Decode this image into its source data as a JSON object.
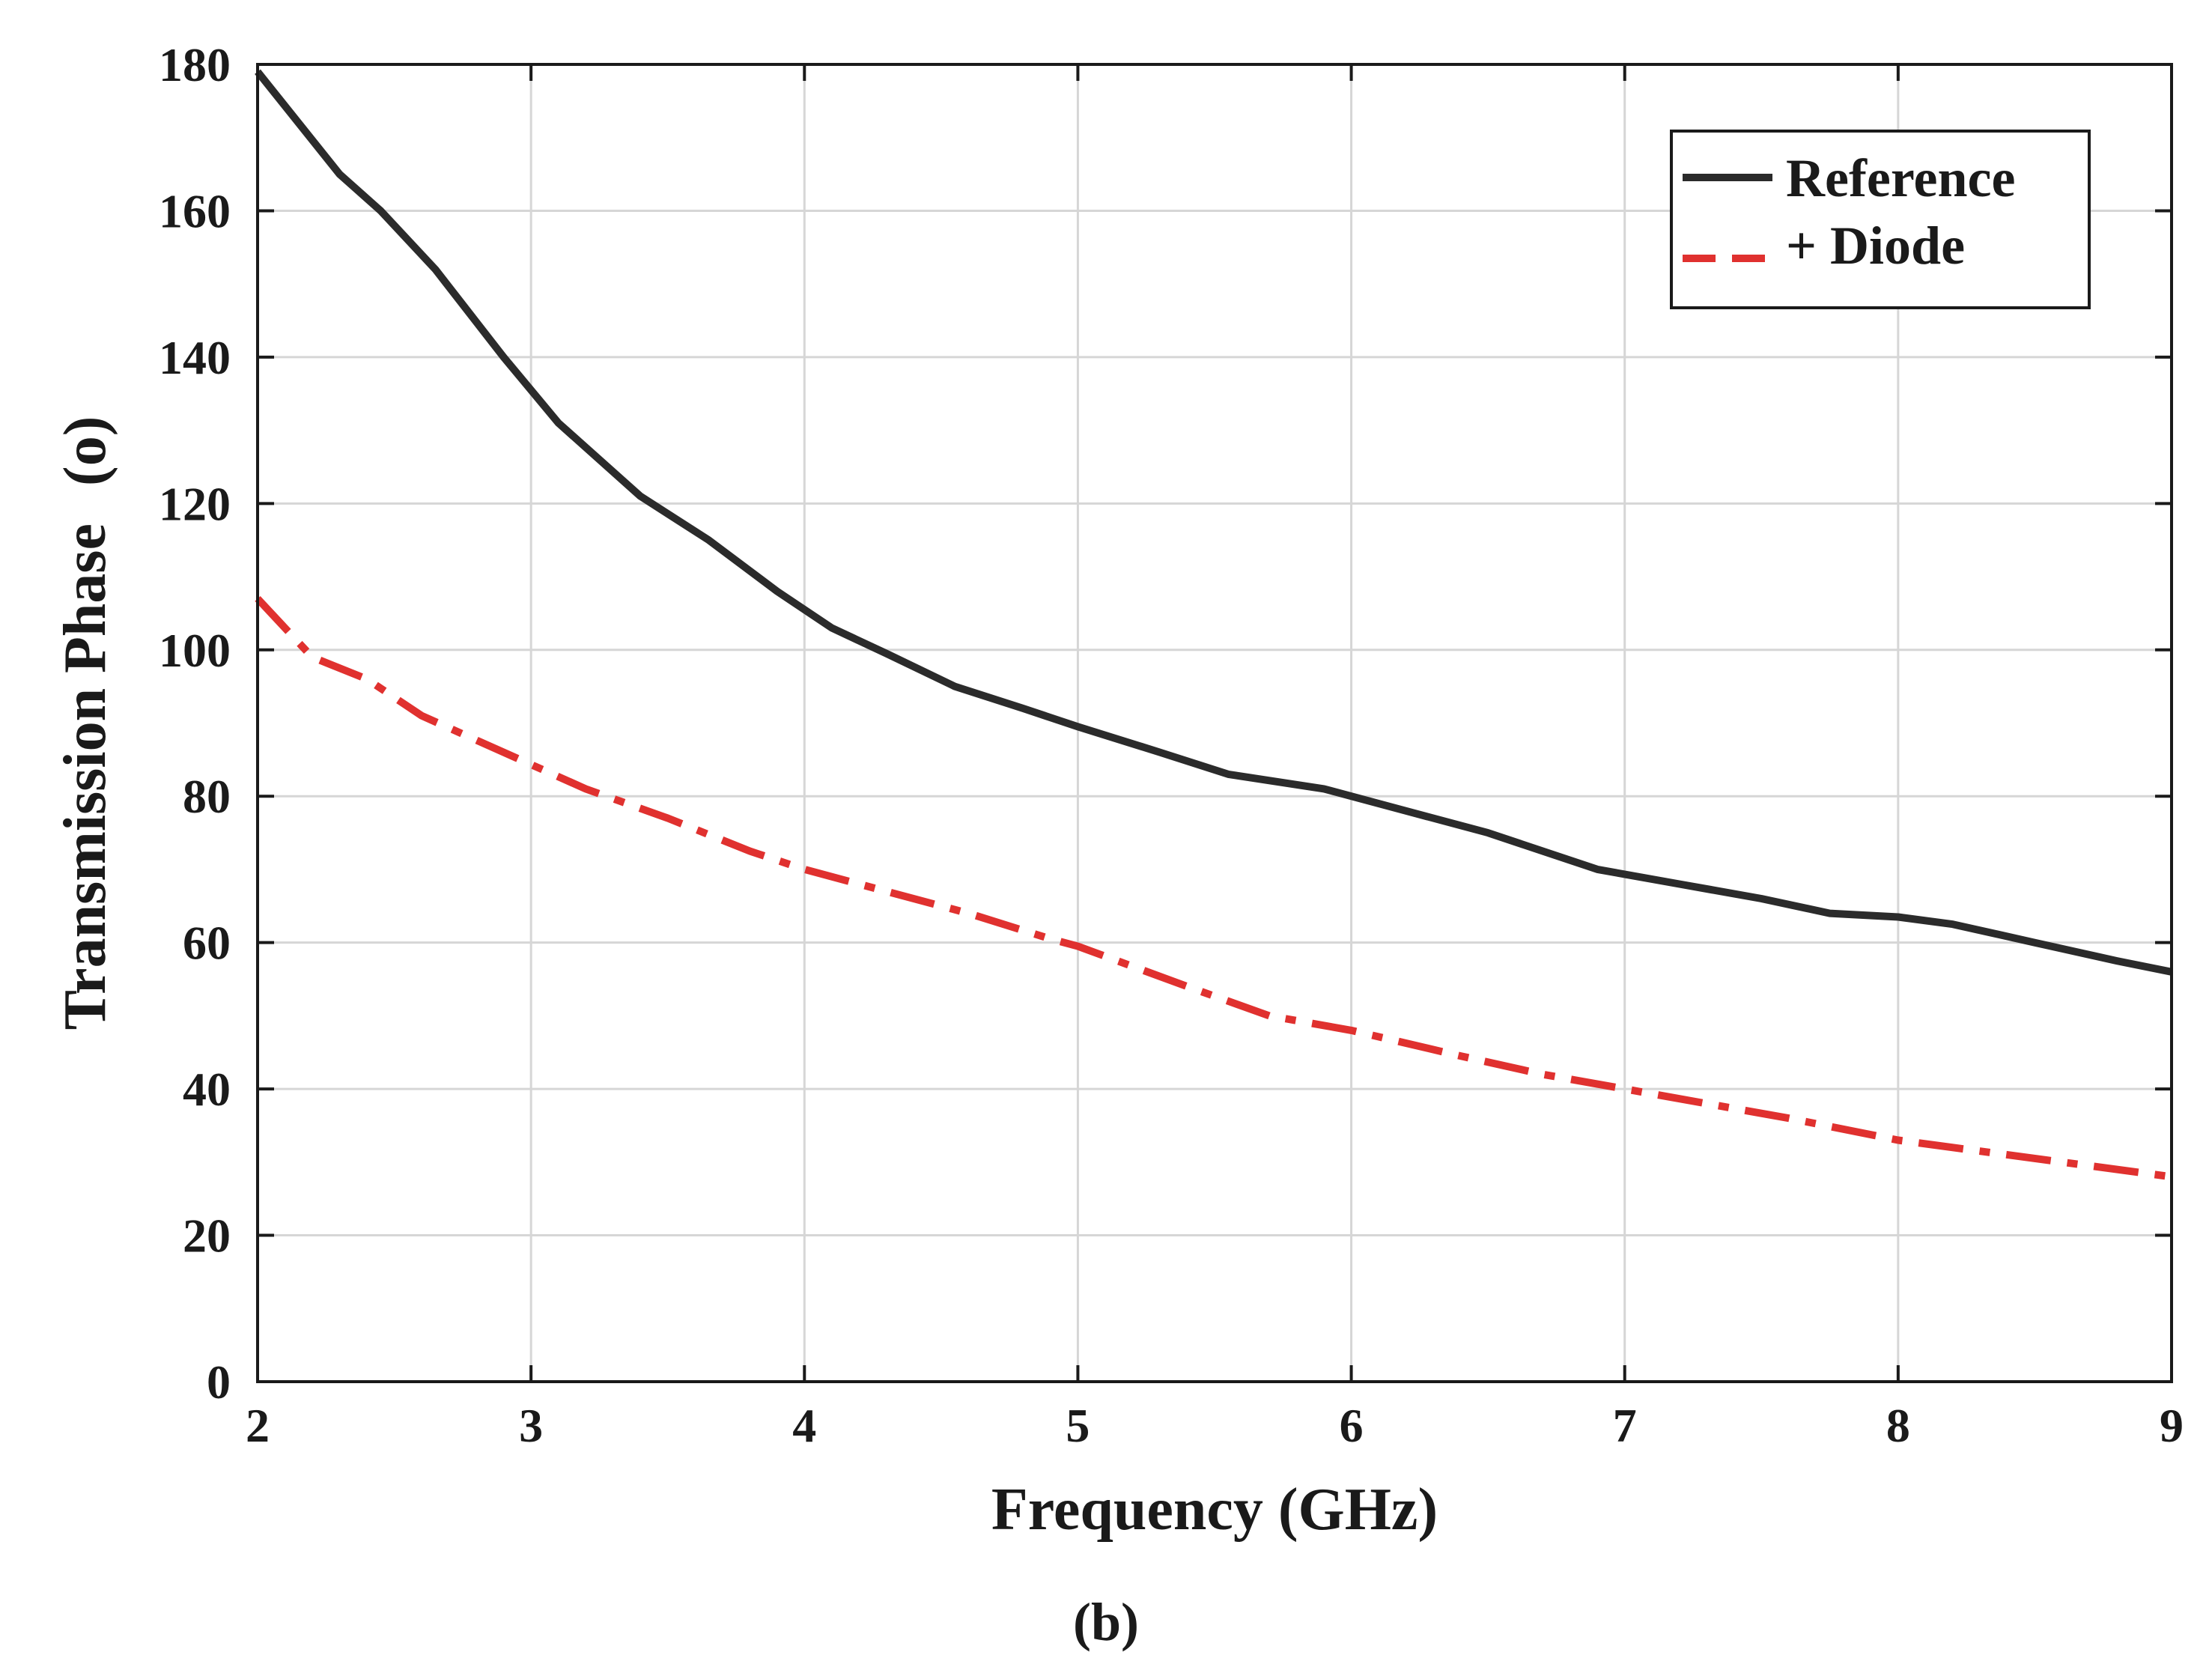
{
  "chart_data": {
    "type": "line",
    "title": "",
    "xlabel": "Frequency (GHz)",
    "ylabel": "Transmission Phase",
    "ylabel_unit": "(o)",
    "caption": "(b)",
    "xlim": [
      2,
      9
    ],
    "ylim": [
      0,
      180
    ],
    "xticks": [
      2,
      3,
      4,
      5,
      6,
      7,
      8,
      9
    ],
    "yticks": [
      0,
      20,
      40,
      60,
      80,
      100,
      120,
      140,
      160,
      180
    ],
    "grid": true,
    "legend_position": "top-right",
    "series": [
      {
        "name": "Reference",
        "color": "#2b2b2b",
        "style": "solid",
        "x": [
          2.0,
          2.15,
          2.3,
          2.45,
          2.65,
          2.9,
          3.1,
          3.4,
          3.65,
          3.9,
          4.1,
          4.3,
          4.55,
          4.8,
          5.0,
          5.3,
          5.55,
          5.9,
          6.2,
          6.5,
          6.9,
          7.2,
          7.5,
          7.75,
          8.0,
          8.2,
          8.5,
          8.8,
          9.0
        ],
        "values": [
          179,
          172,
          165,
          160,
          152,
          140,
          131,
          121,
          115,
          108,
          103,
          99.5,
          95,
          92,
          89.5,
          86,
          83,
          81,
          78,
          75,
          70,
          68,
          66,
          64,
          63.5,
          62.5,
          60,
          57.5,
          56
        ]
      },
      {
        "name": "+ Diode",
        "color": "#e0312f",
        "style": "dashdot",
        "x": [
          2.0,
          2.1,
          2.2,
          2.4,
          2.6,
          2.9,
          3.2,
          3.5,
          3.8,
          4.0,
          4.3,
          4.6,
          4.9,
          5.0,
          5.4,
          5.7,
          6.0,
          6.4,
          6.7,
          7.0,
          7.3,
          7.6,
          8.0,
          8.3,
          8.6,
          9.0
        ],
        "values": [
          107,
          103,
          99,
          96,
          91,
          86,
          81,
          77,
          72.5,
          70,
          67,
          64,
          60.5,
          59.5,
          54,
          50,
          48,
          44.5,
          42,
          40,
          38,
          36,
          33,
          31.5,
          30,
          28
        ]
      }
    ]
  }
}
